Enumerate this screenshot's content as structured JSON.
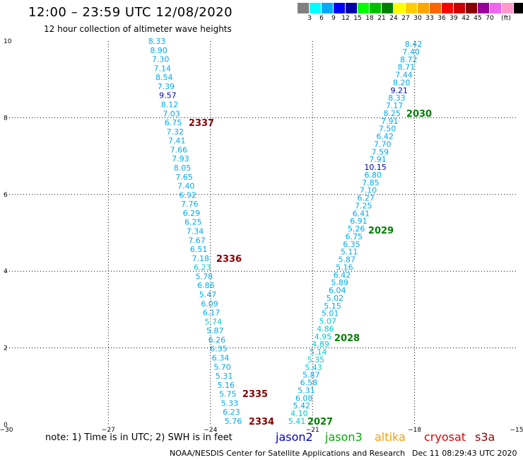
{
  "header": {
    "title": "12:00 – 23:59 UTC 12/08/2020",
    "subtitle": "12 hour collection of altimeter wave heights"
  },
  "color_scale": {
    "colors": [
      "#808080",
      "#00ffff",
      "#00aaff",
      "#0000ff",
      "#0000aa",
      "#00ff00",
      "#00c000",
      "#008000",
      "#ffff00",
      "#ffcc00",
      "#ffa500",
      "#ff6600",
      "#ff0000",
      "#cc0000",
      "#880000",
      "#990099",
      "#ee66ee",
      "#ff99cc",
      "#000000"
    ],
    "labels": [
      "3",
      "6",
      "9",
      "12",
      "15",
      "18",
      "21",
      "24",
      "27",
      "30",
      "33",
      "36",
      "39",
      "42",
      "45",
      "70",
      "(ft)"
    ]
  },
  "map": {
    "x_ticks": [
      "−30",
      "−27",
      "−24",
      "−21",
      "−18",
      "−15"
    ],
    "y_ticks": [
      "0",
      "2",
      "4",
      "6",
      "8",
      "10"
    ],
    "track_left": {
      "values": [
        "8.33",
        "8.90",
        "7.30",
        "7.14",
        "8.54",
        "7.39",
        "9.57",
        "8.12",
        "7.03",
        "6.75",
        "7.32",
        "7.41",
        "7.66",
        "7.93",
        "8.05",
        "7.65",
        "7.40",
        "6.92",
        "7.76",
        "6.29",
        "6.25",
        "7.34",
        "7.67",
        "6.51",
        "7.18",
        "6.23",
        "5.78",
        "6.86",
        "5.47",
        "6.09",
        "6.17",
        "5.74",
        "5.87",
        "6.26",
        "6.35",
        "6.34",
        "5.70",
        "5.31",
        "5.16",
        "5.75",
        "5.33",
        "6.23",
        "5.76"
      ],
      "colors": [
        "#00aaee",
        "#00aaee",
        "#00aaee",
        "#00aaee",
        "#00aaee",
        "#00aaee",
        "#0000aa",
        "#00aaee",
        "#00aaee",
        "#00aaee",
        "#00aaee",
        "#00aaee",
        "#00aaee",
        "#00aaee",
        "#00aaee",
        "#00aaee",
        "#00aaee",
        "#00aaee",
        "#00aaee",
        "#00aaee",
        "#00aaee",
        "#00aaee",
        "#00aaee",
        "#00aaee",
        "#00aaee",
        "#00cccc",
        "#00aaee",
        "#00aaee",
        "#00aaee",
        "#00aaee",
        "#00aaee",
        "#00cccc",
        "#00aaee",
        "#00aaee",
        "#00aaee",
        "#00aaee",
        "#00aaee",
        "#00aaee",
        "#00aaee",
        "#00aaee",
        "#00aaee",
        "#00aaee",
        "#00aaee"
      ]
    },
    "track_right": {
      "values": [
        "8.42",
        "7.40",
        "8.72",
        "8.71",
        "7.44",
        "8.20",
        "9.21",
        "8.33",
        "7.17",
        "8.25",
        "7.91",
        "7.50",
        "6.42",
        "7.70",
        "7.59",
        "7.91",
        "10.15",
        "6.80",
        "7.85",
        "7.10",
        "6.27",
        "7.25",
        "6.41",
        "6.91",
        "5.26",
        "6.75",
        "6.35",
        "5.11",
        "5.87",
        "5.16",
        "6.42",
        "5.89",
        "6.04",
        "5.02",
        "5.15",
        "5.01",
        "5.07",
        "4.86",
        "4.95",
        "4.89",
        "5.14",
        "5.35",
        "5.43",
        "5.87",
        "6.58",
        "5.31",
        "6.08",
        "5.42",
        "4.10",
        "5.41"
      ],
      "colors": [
        "#00aaee",
        "#00aaee",
        "#00aaee",
        "#00aaee",
        "#00aaee",
        "#00aaee",
        "#0000aa",
        "#00aaee",
        "#00aaee",
        "#00aaee",
        "#00aaee",
        "#00aaee",
        "#00aaee",
        "#00aaee",
        "#00aaee",
        "#00aaee",
        "#0000aa",
        "#00aaee",
        "#00aaee",
        "#00aaee",
        "#00aaee",
        "#00aaee",
        "#00aaee",
        "#00aaee",
        "#00aaee",
        "#00aaee",
        "#00aaee",
        "#00aaee",
        "#00aaee",
        "#00aaee",
        "#00aaee",
        "#00aaee",
        "#00aaee",
        "#00aaee",
        "#00aaee",
        "#00aaee",
        "#00cccc",
        "#00cccc",
        "#00cccc",
        "#00cccc",
        "#00cccc",
        "#00cccc",
        "#00cccc",
        "#00aaee",
        "#00aaee",
        "#00aaee",
        "#00aaee",
        "#00aaee",
        "#00cccc",
        "#00cccc"
      ]
    },
    "time_labels_left": [
      "2337",
      "2336",
      "2335",
      "2334"
    ],
    "time_labels_right": [
      "2030",
      "2029",
      "2028",
      "2027"
    ]
  },
  "note": "note: 1) Time is in UTC; 2) SWH is in feet",
  "legend": [
    {
      "name": "jason2",
      "color": "#0000cc"
    },
    {
      "name": "jason3",
      "color": "#00aa00"
    },
    {
      "name": "altika",
      "color": "#ff9900"
    },
    {
      "name": "cryosat",
      "color": "#dd0000"
    },
    {
      "name": "s3a",
      "color": "#990000"
    }
  ],
  "footer": {
    "credit": "NOAA/NESDIS Center for Satellite Applications and Research",
    "date": "Dec 11 08:29:43 UTC 2020"
  }
}
